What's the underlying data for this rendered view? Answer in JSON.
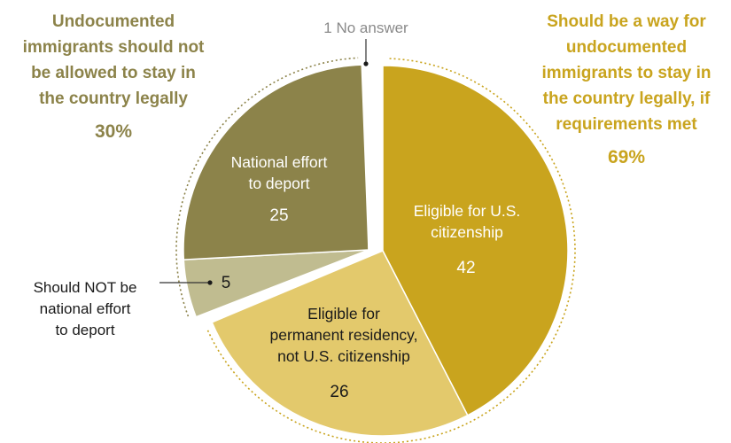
{
  "chart_data": {
    "type": "pie",
    "slices": [
      {
        "key": "citizenship",
        "label_lines": [
          "Eligible for U.S.",
          "citizenship"
        ],
        "value": 42,
        "value_label": "42",
        "color": "#c9a41e",
        "text_color": "#ffffff"
      },
      {
        "key": "permanent",
        "label_lines": [
          "Eligible for",
          "permanent residency,",
          "not U.S. citizenship"
        ],
        "value": 26,
        "value_label": "26",
        "color": "#e3c96c",
        "text_color": "#1a1a1a"
      },
      {
        "key": "no-deport",
        "label_lines": [],
        "value": 5,
        "value_label": "5",
        "color": "#c0bc90",
        "text_color": "#1a1a1a"
      },
      {
        "key": "deport",
        "label_lines": [
          "National effort",
          "to deport"
        ],
        "value": 25,
        "value_label": "25",
        "color": "#8c834a",
        "text_color": "#ffffff"
      },
      {
        "key": "no-answer",
        "label_lines": [],
        "value": 1,
        "value_label": "",
        "color": "#a6a6a6",
        "text_color": "#666666"
      }
    ],
    "groups": [
      {
        "key": "not-allowed",
        "title_lines": [
          "Undocumented",
          "immigrants should not",
          "be allowed to stay in",
          "the country legally"
        ],
        "percent": "30%",
        "color": "#8c834a"
      },
      {
        "key": "should-be-way",
        "title_lines": [
          "Should be a way for",
          "undocumented",
          "immigrants to stay in",
          "the country legally, if",
          "requirements met"
        ],
        "percent": "69%",
        "color": "#c9a41e"
      }
    ],
    "callouts": {
      "no_answer": "1 No answer",
      "no_deport_lines": [
        "Should NOT be",
        "national effort",
        "to deport"
      ]
    },
    "legend": "none"
  }
}
